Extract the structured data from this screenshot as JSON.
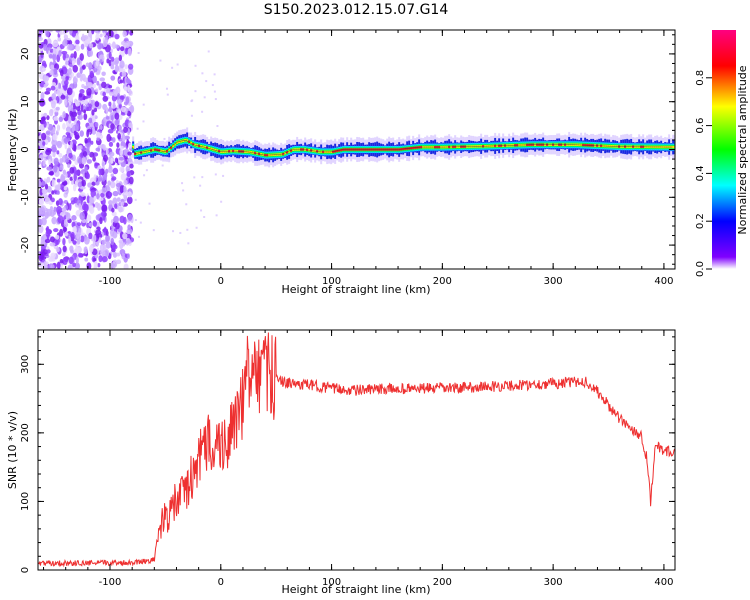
{
  "title": "S150.2023.012.15.07.G14",
  "chart_data": [
    {
      "type": "heatmap",
      "xlabel": "Height of straight line (km)",
      "ylabel": "Frequency (Hz)",
      "xlim": [
        -165,
        410
      ],
      "ylim": [
        -25,
        25
      ],
      "xticks": [
        -100,
        0,
        100,
        200,
        300,
        400
      ],
      "yticks": [
        -20,
        -10,
        0,
        10,
        20
      ],
      "colorbar": {
        "label": "Normalized spectral amplitude",
        "range": [
          0,
          1
        ],
        "ticks": [
          "0.0",
          "0.2",
          "0.4",
          "0.6",
          "0.8"
        ],
        "colors": [
          "#ffffff",
          "#8000ff",
          "#0000ff",
          "#00ffff",
          "#00ff00",
          "#ffff00",
          "#ff0000",
          "#ff0080"
        ]
      },
      "noise_region_x": [
        -165,
        -80
      ],
      "ridge": {
        "x": [
          -80,
          -70,
          -60,
          -50,
          -40,
          -32,
          -25,
          -15,
          0,
          10,
          25,
          40,
          55,
          65,
          75,
          90,
          100,
          110,
          130,
          160,
          180,
          200,
          240,
          280,
          320,
          360,
          410
        ],
        "freq": [
          -1,
          -0.5,
          0,
          -0.5,
          1.5,
          2,
          1,
          0.5,
          -0.5,
          -0.3,
          -0.5,
          -1.2,
          -1,
          0,
          0,
          -0.5,
          -0.5,
          0,
          0,
          0,
          0.5,
          0.5,
          0.7,
          1,
          1,
          0.6,
          0.5
        ]
      }
    },
    {
      "type": "line",
      "xlabel": "Height of straight line (km)",
      "ylabel": "SNR (10 * v/v)",
      "xlim": [
        -165,
        410
      ],
      "ylim": [
        0,
        350
      ],
      "xticks": [
        -100,
        0,
        100,
        200,
        300,
        400
      ],
      "yticks": [
        0,
        100,
        200,
        300
      ],
      "color": "#ee3030",
      "series": [
        {
          "x": [
            -165,
            -120,
            -80,
            -60,
            -56,
            -50,
            -40,
            -30,
            -20,
            -10,
            0,
            10,
            20,
            25,
            30,
            40,
            50,
            60,
            80,
            100,
            120,
            150,
            200,
            250,
            300,
            330,
            340,
            360,
            380,
            385,
            388,
            392,
            400,
            410
          ],
          "values": [
            10,
            10,
            11,
            15,
            60,
            75,
            100,
            120,
            160,
            190,
            180,
            200,
            240,
            290,
            275,
            285,
            280,
            272,
            270,
            265,
            262,
            264,
            265,
            268,
            272,
            275,
            260,
            220,
            195,
            160,
            100,
            180,
            175,
            170
          ]
        }
      ]
    }
  ]
}
